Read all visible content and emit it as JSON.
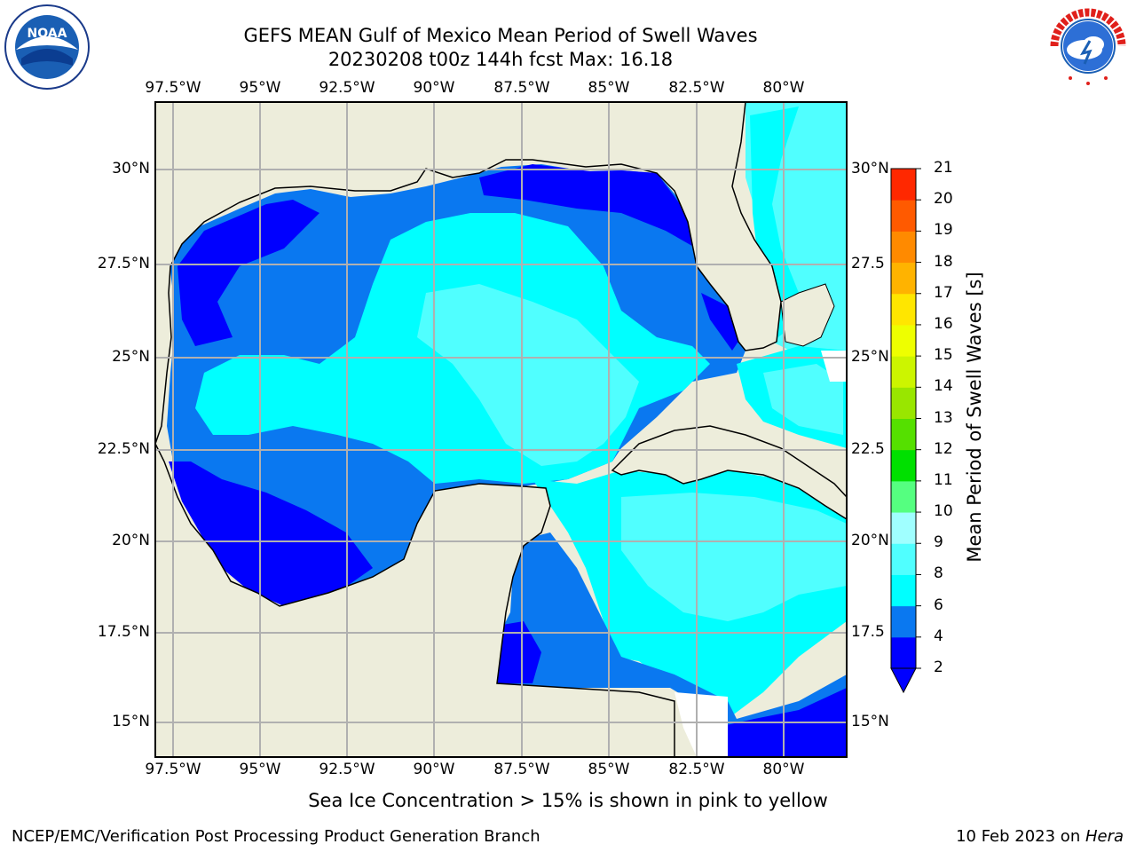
{
  "title": {
    "line1": "GEFS MEAN Gulf of Mexico Mean Period of Swell Waves",
    "line2": "20230208 t00z 144h fcst   Max: 16.18"
  },
  "map": {
    "lon_ticks_top": [
      "97.5°W",
      "95°W",
      "92.5°W",
      "90°W",
      "87.5°W",
      "85°W",
      "82.5°W",
      "80°W"
    ],
    "lon_ticks_bottom": [
      "97.5°W",
      "95°W",
      "92.5°W",
      "90°W",
      "87.5°W",
      "85°W",
      "82.5°W",
      "80°W"
    ],
    "lat_ticks_left": [
      "30°N",
      "27.5°N",
      "25°N",
      "22.5°N",
      "20°N",
      "17.5°N",
      "15°N"
    ],
    "lat_ticks_right": [
      "30°N",
      "27.5",
      "25°N",
      "22.5",
      "20°N",
      "17.5",
      "15°N"
    ],
    "land_color": "#EDEDDB",
    "grid_color": "#B0B0B0"
  },
  "colorbar": {
    "label": "Mean Period of Swell Waves [s]",
    "ticks": [
      "2",
      "4",
      "6",
      "8",
      "9",
      "10",
      "11",
      "12",
      "13",
      "14",
      "15",
      "16",
      "17",
      "18",
      "19",
      "20",
      "21"
    ],
    "colors": [
      "#0000FF",
      "#0A78F0",
      "#00FFFF",
      "#50FFFF",
      "#A0FFFF",
      "#55FF80",
      "#00E000",
      "#55E000",
      "#99E600",
      "#CCF500",
      "#EEFF00",
      "#FFE600",
      "#FFB300",
      "#FF8A00",
      "#FF5A00",
      "#FF2800"
    ],
    "extend_color": "#0000FF"
  },
  "logos": {
    "noaa": "NOAA",
    "nws_text": "NATIONAL WEATHER SERVICE"
  },
  "footer": {
    "sea_ice_note": "Sea Ice Concentration > 15% is shown in pink to yellow",
    "credit": "NCEP/EMC/Verification Post Processing Product Generation Branch",
    "date": "10 Feb 2023 on ",
    "machine": "Hera"
  }
}
